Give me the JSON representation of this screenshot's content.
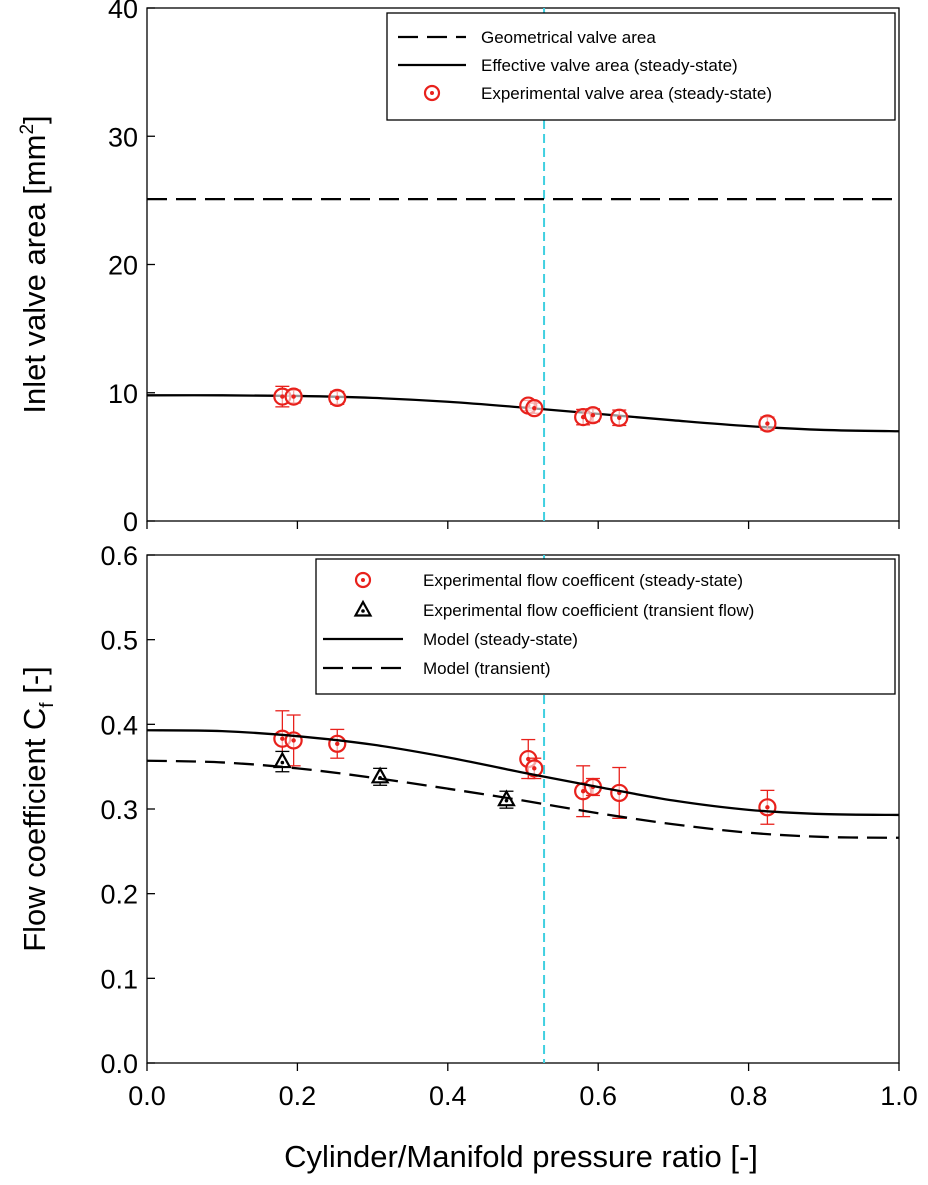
{
  "chart_data": [
    {
      "type": "line",
      "ylabel": "Inlet valve area [mm",
      "ylabel_superscript": "2",
      "ylabel_suffix": "]",
      "xlabel": "",
      "xlim": [
        0.0,
        1.0
      ],
      "ylim": [
        0,
        40
      ],
      "yticks": [
        0,
        10,
        20,
        30,
        40
      ],
      "ytick_labels": [
        "0",
        "10",
        "20",
        "30",
        "40"
      ],
      "grid": false,
      "legend_position": "top-right",
      "series": [
        {
          "name": "Geometrical valve area",
          "style": "dashed-line",
          "color": "#000000",
          "x": [
            0.0,
            1.0
          ],
          "y": [
            25.1,
            25.1
          ]
        },
        {
          "name": "Effective valve area (steady-state)",
          "style": "solid-line",
          "color": "#000000",
          "x": [
            0.0,
            0.1,
            0.2,
            0.3,
            0.4,
            0.5,
            0.6,
            0.7,
            0.8,
            0.9,
            1.0
          ],
          "y": [
            9.8,
            9.8,
            9.75,
            9.6,
            9.3,
            8.85,
            8.35,
            7.85,
            7.4,
            7.1,
            7.0
          ]
        },
        {
          "name": "Experimental valve area (steady-state)",
          "style": "circle-dot-markers",
          "color": "#e8211c",
          "x": [
            0.18,
            0.195,
            0.253,
            0.507,
            0.515,
            0.58,
            0.593,
            0.628,
            0.825
          ],
          "y": [
            9.7,
            9.7,
            9.6,
            9.0,
            8.8,
            8.1,
            8.25,
            8.05,
            7.6
          ],
          "yerr": [
            0.8,
            0.5,
            0.5,
            0.4,
            0.4,
            0.6,
            0.5,
            0.6,
            0.5
          ]
        }
      ],
      "reference_line": {
        "x": 0.528,
        "color": "#40d0e0",
        "style": "dashed"
      }
    },
    {
      "type": "line",
      "ylabel": "Flow coefficient C",
      "ylabel_subscript": "f",
      "ylabel_suffix": " [-]",
      "xlabel": "Cylinder/Manifold pressure ratio [-]",
      "xlim": [
        0.0,
        1.0
      ],
      "ylim": [
        0.0,
        0.6
      ],
      "xticks": [
        0.0,
        0.2,
        0.4,
        0.6,
        0.8,
        1.0
      ],
      "xtick_labels": [
        "0.0",
        "0.2",
        "0.4",
        "0.6",
        "0.8",
        "1.0"
      ],
      "yticks": [
        0.0,
        0.1,
        0.2,
        0.3,
        0.4,
        0.5,
        0.6
      ],
      "ytick_labels": [
        "0.0",
        "0.1",
        "0.2",
        "0.3",
        "0.4",
        "0.5",
        "0.6"
      ],
      "grid": false,
      "legend_position": "top-right",
      "series": [
        {
          "name": "Experimental flow coefficent (steady-state)",
          "style": "circle-dot-markers",
          "color": "#e8211c",
          "x": [
            0.18,
            0.195,
            0.253,
            0.507,
            0.515,
            0.58,
            0.593,
            0.628,
            0.825
          ],
          "y": [
            0.383,
            0.381,
            0.377,
            0.359,
            0.348,
            0.321,
            0.326,
            0.319,
            0.302
          ],
          "yerr": [
            0.033,
            0.03,
            0.017,
            0.023,
            0.012,
            0.03,
            0.01,
            0.03,
            0.02
          ]
        },
        {
          "name": "Experimental flow coefficient (transient flow)",
          "style": "triangle-dot-markers",
          "color": "#000000",
          "x": [
            0.18,
            0.31,
            0.478
          ],
          "y": [
            0.356,
            0.338,
            0.311
          ],
          "yerr": [
            0.012,
            0.01,
            0.01
          ]
        },
        {
          "name": "Model (steady-state)",
          "style": "solid-line",
          "color": "#000000",
          "x": [
            0.0,
            0.1,
            0.2,
            0.3,
            0.4,
            0.5,
            0.6,
            0.7,
            0.8,
            0.9,
            1.0
          ],
          "y": [
            0.393,
            0.392,
            0.386,
            0.376,
            0.361,
            0.343,
            0.326,
            0.31,
            0.299,
            0.294,
            0.293
          ]
        },
        {
          "name": "Model (transient)",
          "style": "dashed-line",
          "color": "#000000",
          "x": [
            0.0,
            0.1,
            0.2,
            0.3,
            0.4,
            0.5,
            0.6,
            0.7,
            0.8,
            0.9,
            1.0
          ],
          "y": [
            0.357,
            0.355,
            0.348,
            0.337,
            0.324,
            0.31,
            0.295,
            0.282,
            0.272,
            0.267,
            0.266
          ]
        }
      ],
      "reference_line": {
        "x": 0.528,
        "color": "#40d0e0",
        "style": "dashed"
      }
    }
  ]
}
